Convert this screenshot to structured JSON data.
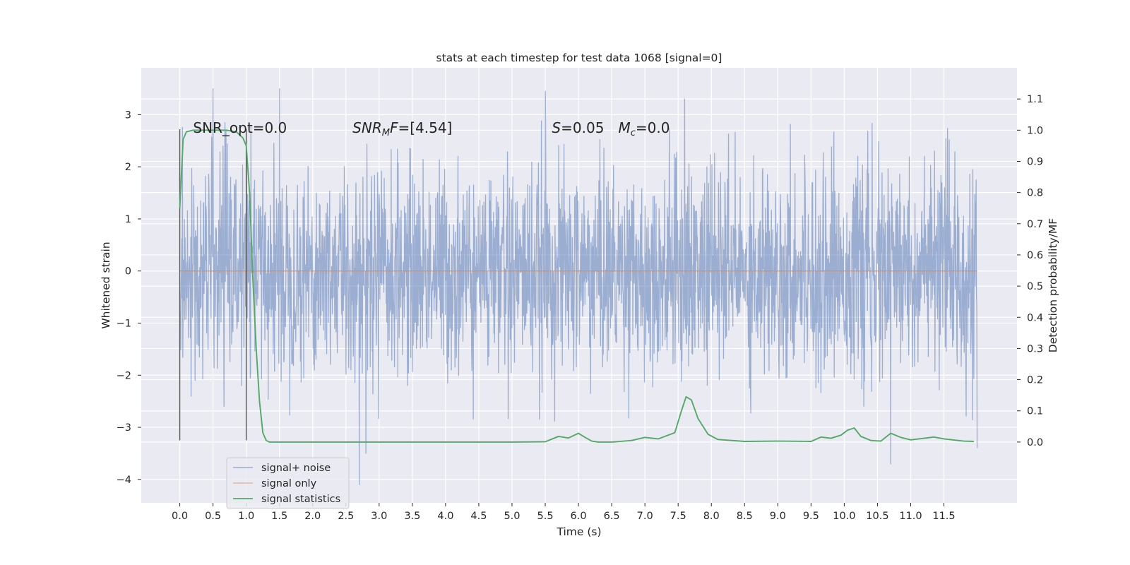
{
  "chart_data": {
    "type": "line",
    "title": "stats at each timestep for test data 1068 [signal=0]",
    "xlabel": "Time (s)",
    "ylabel": "Whitened strain",
    "y2label": "Detection probability/MF",
    "xlim": [
      -0.58,
      12.6
    ],
    "ylim": [
      -4.45,
      3.9
    ],
    "y2lim": [
      -0.195,
      1.2
    ],
    "x_ticks": [
      "0.0",
      "0.5",
      "1.0",
      "1.5",
      "2.0",
      "2.5",
      "3.0",
      "3.5",
      "4.0",
      "4.5",
      "5.0",
      "5.5",
      "6.0",
      "6.5",
      "7.0",
      "7.5",
      "8.0",
      "8.5",
      "9.0",
      "9.5",
      "10.0",
      "10.5",
      "11.0",
      "11.5"
    ],
    "y_ticks": [
      "3",
      "2",
      "1",
      "0",
      "−1",
      "−2",
      "−3",
      "−4"
    ],
    "y2_ticks": [
      "1.1",
      "1.0",
      "0.9",
      "0.8",
      "0.7",
      "0.6",
      "0.5",
      "0.4",
      "0.3",
      "0.2",
      "0.1",
      "0.0"
    ],
    "grid": true,
    "legend_position": "lower left",
    "series": [
      {
        "name": "signal+ noise",
        "color": "#4c72b0",
        "opacity": 0.5,
        "x_range": [
          0,
          12.0
        ],
        "typical_envelope": [
          -1.6,
          1.5
        ],
        "extremes": [
          {
            "x": 0.5,
            "y": 3.5
          },
          {
            "x": 1.5,
            "y": 3.5
          },
          {
            "x": 5.5,
            "y": 3.45
          },
          {
            "x": 7.6,
            "y": 3.3
          },
          {
            "x": 2.7,
            "y": -4.1
          },
          {
            "x": 10.7,
            "y": -3.7
          },
          {
            "x": 2.8,
            "y": -3.5
          },
          {
            "x": 12.0,
            "y": -3.4
          }
        ]
      },
      {
        "name": "signal only",
        "color": "#dd8452",
        "x": [
          0,
          12.0
        ],
        "y": [
          0,
          0
        ]
      },
      {
        "name": "signal statistics",
        "color": "#55a868",
        "axis": "right",
        "x": [
          0.0,
          0.05,
          0.1,
          0.2,
          0.3,
          0.5,
          0.7,
          0.85,
          0.95,
          1.0,
          1.05,
          1.1,
          1.15,
          1.2,
          1.25,
          1.3,
          1.35,
          1.4,
          2.0,
          3.0,
          4.0,
          5.0,
          5.5,
          5.7,
          5.85,
          6.0,
          6.1,
          6.2,
          6.3,
          6.5,
          6.8,
          7.0,
          7.2,
          7.45,
          7.55,
          7.62,
          7.7,
          7.8,
          7.95,
          8.1,
          8.5,
          9.0,
          9.5,
          9.65,
          9.8,
          9.95,
          10.05,
          10.15,
          10.25,
          10.4,
          10.55,
          10.7,
          10.85,
          11.0,
          11.2,
          11.35,
          11.5,
          11.8,
          11.95
        ],
        "y": [
          0.75,
          0.97,
          0.995,
          1.0,
          1.0,
          1.0,
          1.0,
          0.995,
          0.975,
          0.95,
          0.8,
          0.52,
          0.3,
          0.13,
          0.03,
          0.005,
          0.0,
          0.0,
          0.0,
          0.0,
          0.0,
          0.0,
          0.001,
          0.018,
          0.013,
          0.028,
          0.015,
          0.003,
          0.0,
          0.0,
          0.005,
          0.015,
          0.01,
          0.03,
          0.1,
          0.145,
          0.135,
          0.075,
          0.025,
          0.008,
          0.002,
          0.003,
          0.002,
          0.016,
          0.012,
          0.022,
          0.038,
          0.045,
          0.018,
          0.005,
          0.003,
          0.028,
          0.015,
          0.007,
          0.012,
          0.016,
          0.01,
          0.003,
          0.002
        ]
      }
    ],
    "vertical_lines": [
      {
        "x": 0.0,
        "y_range": [
          -3.25,
          2.72
        ]
      },
      {
        "x": 1.0,
        "y_range": [
          -3.25,
          2.72
        ]
      }
    ],
    "annotations": [
      {
        "text": "SNR_opt=0.0",
        "x": 0.2,
        "y": 2.65
      },
      {
        "text": "SNR_MF=[4.54]",
        "x": 2.6,
        "y": 2.65
      },
      {
        "text": "S=0.05",
        "x": 5.6,
        "y": 2.65
      },
      {
        "text": "M_c=0.0",
        "x": 6.6,
        "y": 2.65
      }
    ]
  }
}
